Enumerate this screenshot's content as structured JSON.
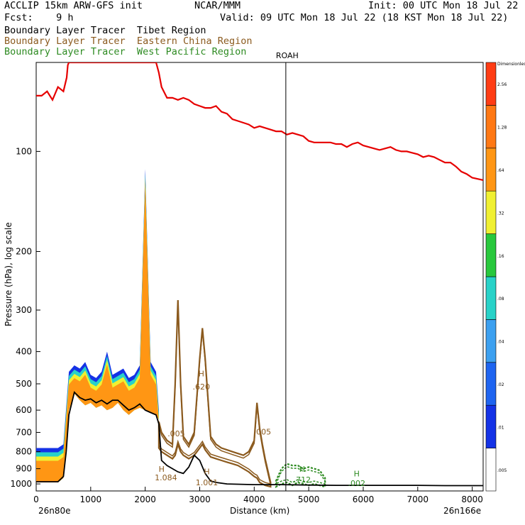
{
  "header": {
    "line1_left": "ACCLIP 15km ARW-GFS init",
    "line1_mid": "NCAR/MMM",
    "line1_right": "Init: 00 UTC Mon 18 Jul 22",
    "line2_left": "Fcst:    9 h",
    "line2_right": "Valid: 09 UTC Mon 18 Jul 22 (18 KST Mon 18 Jul 22)"
  },
  "legend_lines": [
    {
      "text": "Boundary Layer Tracer  Tibet Region",
      "color": "#000000"
    },
    {
      "text": "Boundary Layer Tracer  Eastern China Region",
      "color": "#8B5A1E"
    },
    {
      "text": "Boundary Layer Tracer  West Pacific Region",
      "color": "#2E8B22"
    }
  ],
  "chart_data": {
    "type": "area",
    "xlabel": "Distance (km)",
    "ylabel": "Pressure (hPa), log scale",
    "x_ticks": [
      0,
      1000,
      2000,
      3000,
      4000,
      5000,
      6000,
      7000,
      8000
    ],
    "y_ticks": [
      100,
      200,
      300,
      400,
      500,
      600,
      700,
      800,
      900,
      1000
    ],
    "xlim": [
      0,
      8200
    ],
    "ylim": [
      1050,
      54
    ],
    "y_scale": "log",
    "start_label": "26n80e",
    "end_label": "26n166e",
    "marker": {
      "label": "ROAH",
      "x": 4580
    },
    "colorbar": {
      "labels": [
        ".005",
        ".01",
        ".02",
        ".04",
        ".08",
        ".16",
        ".32",
        ".64",
        "1.28",
        "2.56",
        "Dimensionless"
      ],
      "colors": [
        "#ffffff",
        "#1432e6",
        "#1e64f0",
        "#3ca0f0",
        "#28d2c8",
        "#28c83c",
        "#f0f032",
        "#ff9614",
        "#ff7814",
        "#ff3c14"
      ]
    },
    "labels": [
      {
        "text": ".005",
        "x": 2570,
        "p": 720,
        "color": "#8B5A1E"
      },
      {
        "text": "H",
        "x": 3030,
        "p": 475,
        "color": "#8B5A1E"
      },
      {
        "text": ".620",
        "x": 3030,
        "p": 520,
        "color": "#8B5A1E"
      },
      {
        "text": ".005",
        "x": 4150,
        "p": 710,
        "color": "#8B5A1E"
      },
      {
        "text": "H",
        "x": 2300,
        "p": 920,
        "color": "#8B5A1E"
      },
      {
        "text": "1.084",
        "x": 2380,
        "p": 975,
        "color": "#8B5A1E"
      },
      {
        "text": "H",
        "x": 3130,
        "p": 935,
        "color": "#8B5A1E"
      },
      {
        "text": "1.001",
        "x": 3130,
        "p": 1010,
        "color": "#8B5A1E"
      },
      {
        "text": "H",
        "x": 4880,
        "p": 920,
        "color": "#2E8B22"
      },
      {
        "text": ".712",
        "x": 4880,
        "p": 990,
        "color": "#2E8B22"
      },
      {
        "text": "H",
        "x": 5880,
        "p": 950,
        "color": "#2E8B22"
      },
      {
        "text": ".002",
        "x": 5880,
        "p": 1015,
        "color": "#2E8B22"
      }
    ],
    "series": [
      {
        "name": "Boundary Layer Tracer  Tibet Region",
        "x": [
          0,
          100,
          200,
          300,
          400,
          500,
          600,
          700,
          800,
          900,
          1000,
          1100,
          1200,
          1300,
          1400,
          1500,
          1600,
          1700,
          1800,
          1900,
          2000,
          2100,
          2200,
          2250
        ],
        "top": [
          780,
          780,
          780,
          780,
          780,
          760,
          460,
          440,
          450,
          430,
          470,
          480,
          460,
          400,
          470,
          460,
          450,
          480,
          470,
          440,
          113,
          430,
          460,
          600
        ],
        "bottom": [
          990,
          990,
          990,
          990,
          990,
          960,
          600,
          535,
          560,
          580,
          570,
          590,
          580,
          600,
          590,
          570,
          600,
          620,
          600,
          590,
          600,
          610,
          620,
          640
        ]
      },
      {
        "name": "Boundary Layer Tracer  Eastern China Region",
        "x": [
          2250,
          2300,
          2400,
          2500,
          2550,
          2600,
          2650,
          2700,
          2800,
          2900,
          3000,
          3050,
          3100,
          3200,
          3300,
          3400,
          3500,
          3600,
          3700,
          3800,
          3900,
          4000,
          4050,
          4100,
          4150,
          4200,
          4300
        ],
        "top": [
          650,
          700,
          740,
          760,
          500,
          280,
          500,
          720,
          760,
          700,
          420,
          340,
          420,
          720,
          760,
          780,
          790,
          800,
          810,
          820,
          800,
          740,
          570,
          680,
          760,
          840,
          990
        ],
        "bottom": [
          780,
          800,
          820,
          840,
          820,
          760,
          800,
          820,
          840,
          820,
          780,
          760,
          790,
          830,
          840,
          850,
          860,
          870,
          880,
          900,
          920,
          950,
          960,
          990,
          1000,
          1010,
          1020
        ]
      },
      {
        "name": "Boundary Layer Tracer  West Pacific Region",
        "x": [
          4400,
          4500,
          4600,
          4700,
          4800,
          4900,
          5000,
          5100,
          5200,
          5300
        ],
        "top": [
          980,
          900,
          870,
          880,
          880,
          900,
          890,
          900,
          910,
          960
        ],
        "bottom": [
          1020,
          1000,
          990,
          1010,
          990,
          1000,
          1010,
          1000,
          1010,
          1020
        ]
      }
    ],
    "tropopause": {
      "x": [
        0,
        100,
        200,
        300,
        400,
        500,
        560,
        580,
        600,
        620,
        2200,
        2250,
        2300,
        2400,
        2500,
        2600,
        2700,
        2800,
        2900,
        3000,
        3100,
        3200,
        3300,
        3400,
        3500,
        3600,
        3700,
        3800,
        3900,
        4000,
        4100,
        4200,
        4300,
        4400,
        4500,
        4600,
        4700,
        4800,
        4900,
        5000,
        5100,
        5200,
        5300,
        5400,
        5500,
        5600,
        5700,
        5800,
        5900,
        6000,
        6100,
        6200,
        6300,
        6400,
        6500,
        6600,
        6700,
        6800,
        6900,
        7000,
        7100,
        7200,
        7300,
        7400,
        7500,
        7600,
        7700,
        7800,
        7900,
        8000,
        8100,
        8200
      ],
      "p": [
        68,
        68,
        66,
        70,
        64,
        66,
        60,
        55,
        54,
        54,
        54,
        58,
        64,
        69,
        69,
        70,
        69,
        70,
        72,
        73,
        74,
        74,
        73,
        76,
        77,
        80,
        81,
        82,
        83,
        85,
        84,
        85,
        86,
        87,
        87,
        89,
        88,
        89,
        90,
        93,
        94,
        94,
        94,
        94,
        95,
        95,
        97,
        95,
        94,
        96,
        97,
        98,
        99,
        98,
        97,
        99,
        100,
        100,
        101,
        102,
        104,
        103,
        104,
        106,
        108,
        108,
        111,
        115,
        117,
        120,
        121,
        122
      ]
    },
    "terrain": {
      "x": [
        0,
        100,
        200,
        300,
        400,
        500,
        550,
        600,
        700,
        800,
        900,
        1000,
        1100,
        1200,
        1300,
        1400,
        1500,
        1600,
        1700,
        1800,
        1900,
        2000,
        2100,
        2200,
        2250,
        2300,
        2400,
        2500,
        2600,
        2700,
        2800,
        2900,
        3000,
        3100,
        3200,
        3300,
        3500,
        4000,
        4500,
        5000,
        5500,
        6000,
        6500,
        7000,
        7500,
        8000,
        8200
      ],
      "p": [
        985,
        985,
        985,
        985,
        985,
        950,
        800,
        620,
        530,
        550,
        560,
        555,
        570,
        560,
        575,
        560,
        560,
        580,
        600,
        590,
        575,
        600,
        610,
        620,
        660,
        850,
        880,
        900,
        920,
        930,
        890,
        820,
        850,
        930,
        980,
        990,
        1000,
        1005,
        1005,
        1008,
        1010,
        1010,
        1010,
        1010,
        1012,
        1012,
        1012
      ]
    }
  }
}
